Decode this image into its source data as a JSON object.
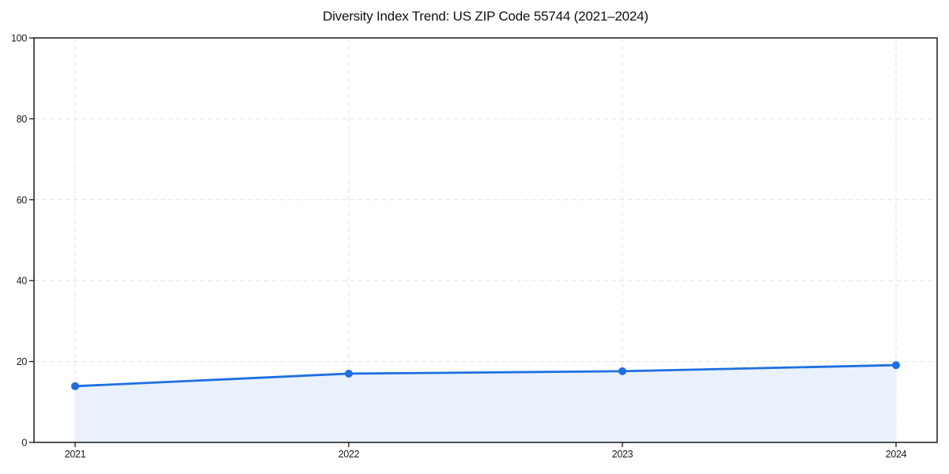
{
  "chart_data": {
    "type": "line",
    "title": "Diversity Index Trend: US ZIP Code 55744 (2021–2024)",
    "categories": [
      "2021",
      "2022",
      "2023",
      "2024"
    ],
    "series": [
      {
        "name": "Diversity Index",
        "values": [
          13.9,
          17.0,
          17.6,
          19.1
        ]
      }
    ],
    "xlabel": "",
    "ylabel": "",
    "ylim": [
      0,
      100
    ],
    "yticks": [
      0,
      20,
      40,
      60,
      80,
      100
    ],
    "grid": true,
    "grid_style": "dashed",
    "legend": false,
    "area": true,
    "marker": "circle",
    "colors": {
      "line": "#1f6fe0",
      "marker": "#1f6fe0",
      "area_fill": "#e9f1fc",
      "grid": "#e2e2e2",
      "axis": "#1a1a1a",
      "text": "#1a1a1a",
      "background": "#ffffff"
    }
  }
}
